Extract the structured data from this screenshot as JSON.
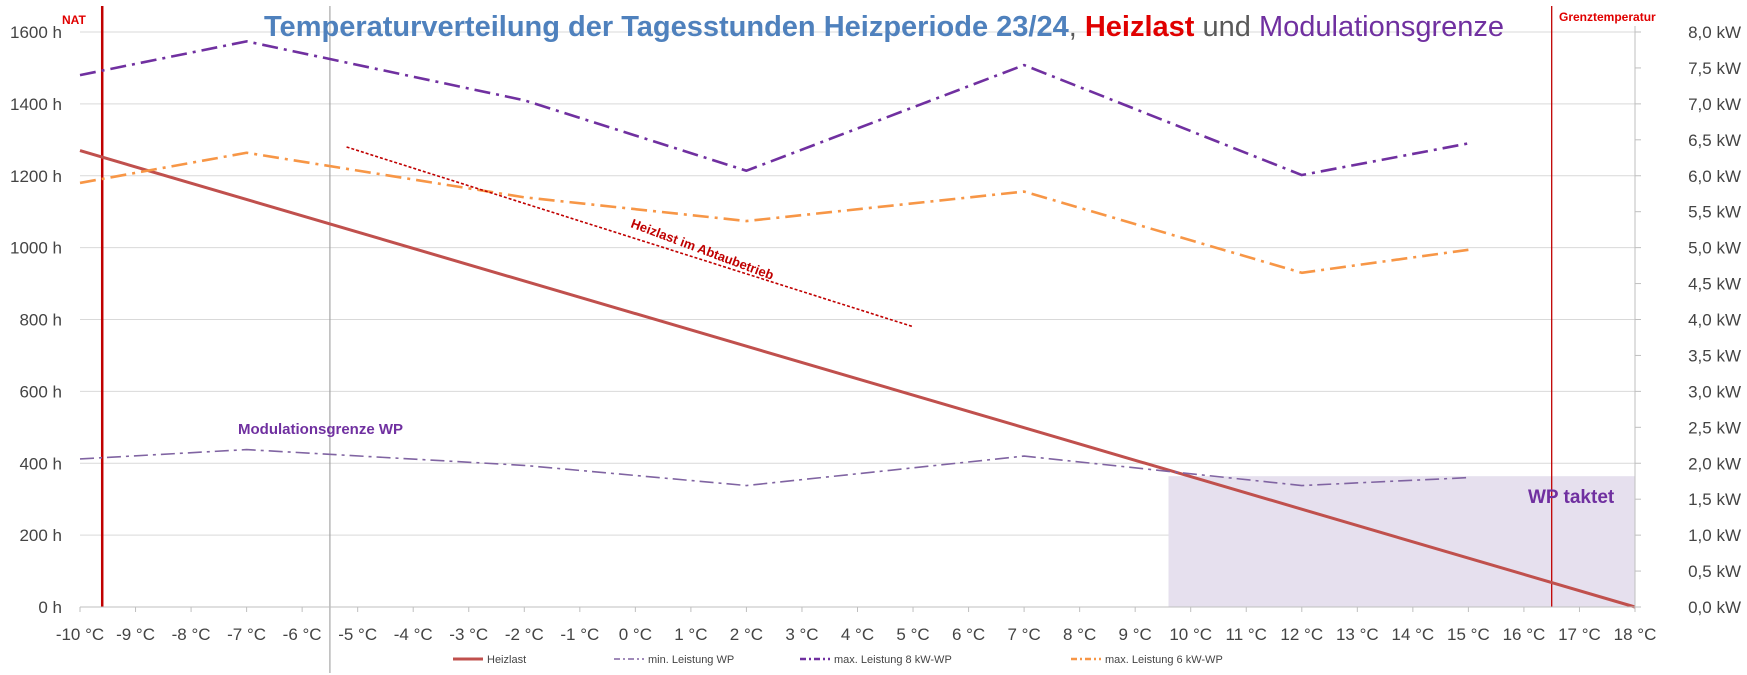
{
  "chart_data": {
    "type": "line",
    "title": {
      "part1": "Temperaturverteilung der Tagesstunden Heizperiode 23/24",
      "sep1": ", ",
      "part2": "Heizlast",
      "sep2": " und ",
      "part3": "Modulationsgrenze"
    },
    "colors": {
      "title_blue": "#4f81bd",
      "title_red": "#e00000",
      "title_purple": "#7030a0",
      "heizlast": "#c0504d",
      "min_leistung": "#8064a2",
      "max_8kw": "#7030a0",
      "max_6kw": "#f79646",
      "abtau": "#c00000",
      "nat_line": "#c00000",
      "grenz_line": "#c00000",
      "shade": "#e6e0ee",
      "gridline": "#d9d9d9",
      "vline_grey": "#a6a6a6"
    },
    "x_categories": [
      "-10 °C",
      "-9 °C",
      "-8 °C",
      "-7 °C",
      "-6 °C",
      "-5 °C",
      "-4 °C",
      "-3 °C",
      "-2 °C",
      "-1 °C",
      "0 °C",
      "1 °C",
      "2 °C",
      "3 °C",
      "4 °C",
      "5 °C",
      "6 °C",
      "7 °C",
      "8 °C",
      "9 °C",
      "10 °C",
      "11 °C",
      "12 °C",
      "13 °C",
      "14 °C",
      "15 °C",
      "16 °C",
      "17 °C",
      "18 °C"
    ],
    "y_left": {
      "min": 0,
      "max": 1600,
      "ticks": [
        "0 h",
        "200 h",
        "400 h",
        "600 h",
        "800 h",
        "1000 h",
        "1200 h",
        "1400 h",
        "1600 h"
      ]
    },
    "y_right": {
      "min": 0,
      "max": 8,
      "ticks": [
        "0,0 kW",
        "0,5 kW",
        "1,0 kW",
        "1,5 kW",
        "2,0 kW",
        "2,5 kW",
        "3,0 kW",
        "3,5 kW",
        "4,0 kW",
        "4,5 kW",
        "5,0 kW",
        "5,5 kW",
        "6,0 kW",
        "6,5 kW",
        "7,0 kW",
        "7,5 kW",
        "8,0 kW"
      ]
    },
    "series": [
      {
        "name": "Heizlast",
        "axis": "right",
        "style": "solid",
        "points": [
          [
            -10,
            6.35
          ],
          [
            18,
            0.0
          ]
        ]
      },
      {
        "name": "min. Leistung  WP",
        "axis": "right",
        "style": "dashdot",
        "points": [
          [
            -10,
            2.06
          ],
          [
            -7,
            2.19
          ],
          [
            -2,
            1.97
          ],
          [
            2,
            1.69
          ],
          [
            7,
            2.1
          ],
          [
            12,
            1.69
          ],
          [
            15,
            1.8
          ]
        ]
      },
      {
        "name": "max. Leistung 8 kW-WP",
        "axis": "right",
        "style": "dashdot-bold",
        "points": [
          [
            -10,
            7.4
          ],
          [
            -7,
            7.87
          ],
          [
            -2,
            7.05
          ],
          [
            2,
            6.07
          ],
          [
            7,
            7.54
          ],
          [
            12,
            6.01
          ],
          [
            15,
            6.45
          ]
        ]
      },
      {
        "name": "max. Leistung 6 kW-WP",
        "axis": "right",
        "style": "dashdot-bold",
        "points": [
          [
            -10,
            5.9
          ],
          [
            -7,
            6.32
          ],
          [
            -2,
            5.7
          ],
          [
            2,
            5.37
          ],
          [
            7,
            5.78
          ],
          [
            12,
            4.65
          ],
          [
            15,
            4.97
          ]
        ]
      },
      {
        "name": "",
        "axis": "right",
        "style": "dotted",
        "points": [
          [
            -5.2,
            6.4
          ],
          [
            5,
            3.9
          ]
        ]
      }
    ],
    "shaded_region": {
      "x_from": 9.6,
      "x_to": 18,
      "y_top": 1.82
    },
    "vertical_lines": [
      {
        "x": -9.6,
        "label": "NAT"
      },
      {
        "x": -5.5,
        "label": ""
      },
      {
        "x": 16.5,
        "label": "Grenztemperatur"
      }
    ],
    "annotations": {
      "modulation": "Modulationsgrenze WP",
      "abtau": "Heizlast im Abtaubetrieb",
      "taktet": "WP taktet",
      "nat": "NAT",
      "grenz": "Grenztemperatur"
    },
    "legend": {
      "placement": "bottom",
      "items": [
        "Heizlast",
        "min. Leistung  WP",
        "max. Leistung 8 kW-WP",
        "max. Leistung 6 kW-WP"
      ]
    },
    "grid": true
  }
}
